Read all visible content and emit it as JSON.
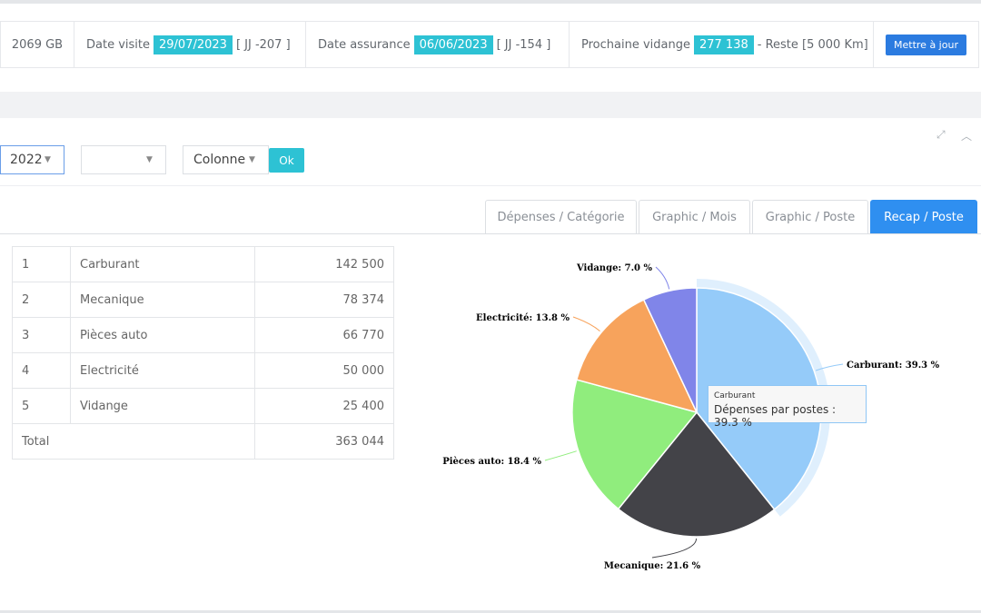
{
  "info": {
    "mileage": "2069 GB",
    "visit_label": "Date visite",
    "visit_date": "29/07/2023",
    "visit_remaining": "[ JJ -207 ]",
    "insurance_label": "Date assurance",
    "insurance_date": "06/06/2023",
    "insurance_remaining": "[ JJ -154 ]",
    "oil_label": "Prochaine vidange",
    "oil_value": "277 138",
    "oil_remaining": "- Reste [5 000 Km]",
    "update_button": "Mettre à jour"
  },
  "filters": {
    "year": "2022",
    "second": "",
    "chart_type": "Colonne",
    "ok_button": "Ok"
  },
  "tabs": [
    "Dépenses / Catégorie",
    "Graphic / Mois",
    "Graphic / Poste",
    "Recap / Poste"
  ],
  "table": {
    "rows": [
      {
        "index": "1",
        "name": "Carburant",
        "amount": "142 500"
      },
      {
        "index": "2",
        "name": "Mecanique",
        "amount": "78 374"
      },
      {
        "index": "3",
        "name": "Pièces auto",
        "amount": "66 770"
      },
      {
        "index": "4",
        "name": "Electricité",
        "amount": "50 000"
      },
      {
        "index": "5",
        "name": "Vidange",
        "amount": "25 400"
      }
    ],
    "total_label": "Total",
    "total_value": "363 044"
  },
  "tooltip": {
    "title": "Carburant",
    "text": "Dépenses par postes : 39.3 %"
  },
  "chart_data": {
    "type": "pie",
    "series_name": "Dépenses par postes",
    "categories": [
      "Carburant",
      "Mecanique",
      "Pièces auto",
      "Electricité",
      "Vidange"
    ],
    "values": [
      39.3,
      21.6,
      18.4,
      13.8,
      7.0
    ],
    "labels": [
      "Carburant: 39.3 %",
      "Mecanique: 21.6 %",
      "Pièces auto: 18.4 %",
      "Electricité: 13.8 %",
      "Vidange: 7.0 %"
    ],
    "colors": [
      "#95cbf9",
      "#434348",
      "#90ed7d",
      "#f7a35c",
      "#8085e9"
    ],
    "highlighted": "Carburant"
  }
}
